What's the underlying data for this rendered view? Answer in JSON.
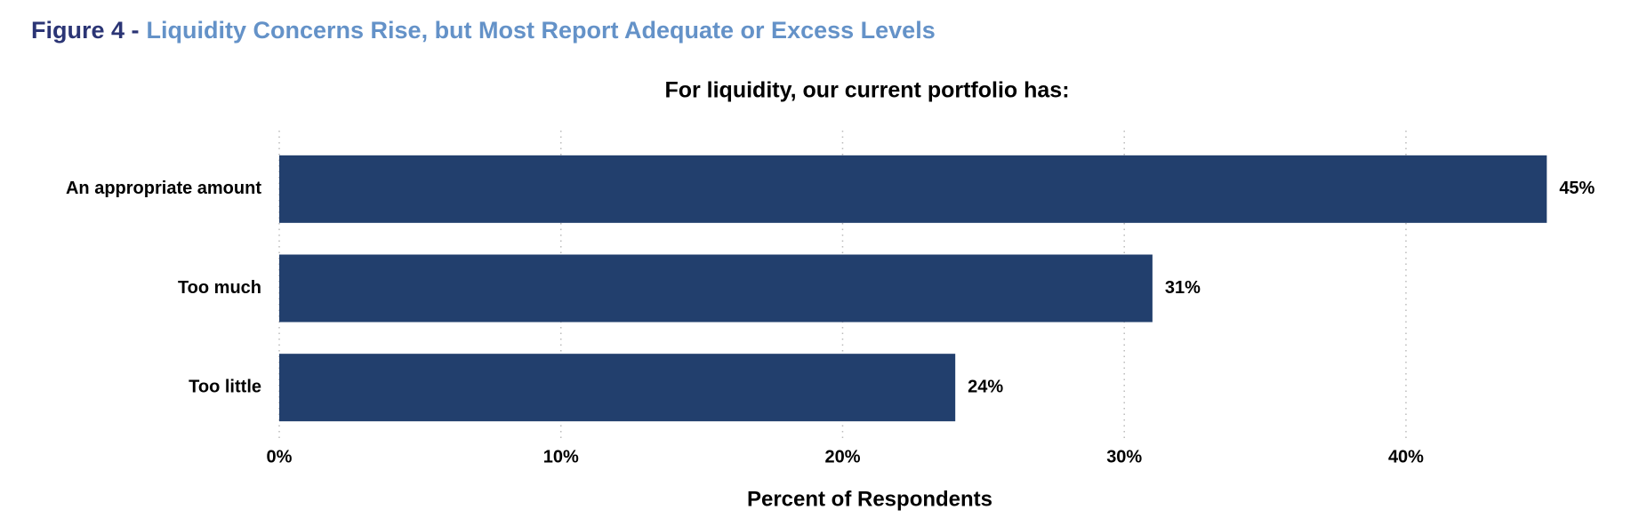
{
  "chart_data": {
    "type": "bar",
    "orientation": "horizontal",
    "figure_label": "Figure 4 -",
    "title": "Liquidity Concerns Rise, but Most Report Adequate or Excess Levels",
    "subtitle": "For liquidity, our current portfolio has:",
    "x_label": "Percent of Respondents",
    "categories": [
      "An appropriate amount",
      "Too much",
      "Too little"
    ],
    "values": [
      45,
      31,
      24
    ],
    "value_labels": [
      "45%",
      "31%",
      "24%"
    ],
    "color": "#223f6d",
    "xlim": [
      0,
      46
    ],
    "xticks": [
      {
        "value": 0,
        "label": "0%"
      },
      {
        "value": 10,
        "label": "10%"
      },
      {
        "value": 20,
        "label": "20%"
      },
      {
        "value": 30,
        "label": "30%"
      },
      {
        "value": 40,
        "label": "40%"
      }
    ],
    "grid": true
  }
}
